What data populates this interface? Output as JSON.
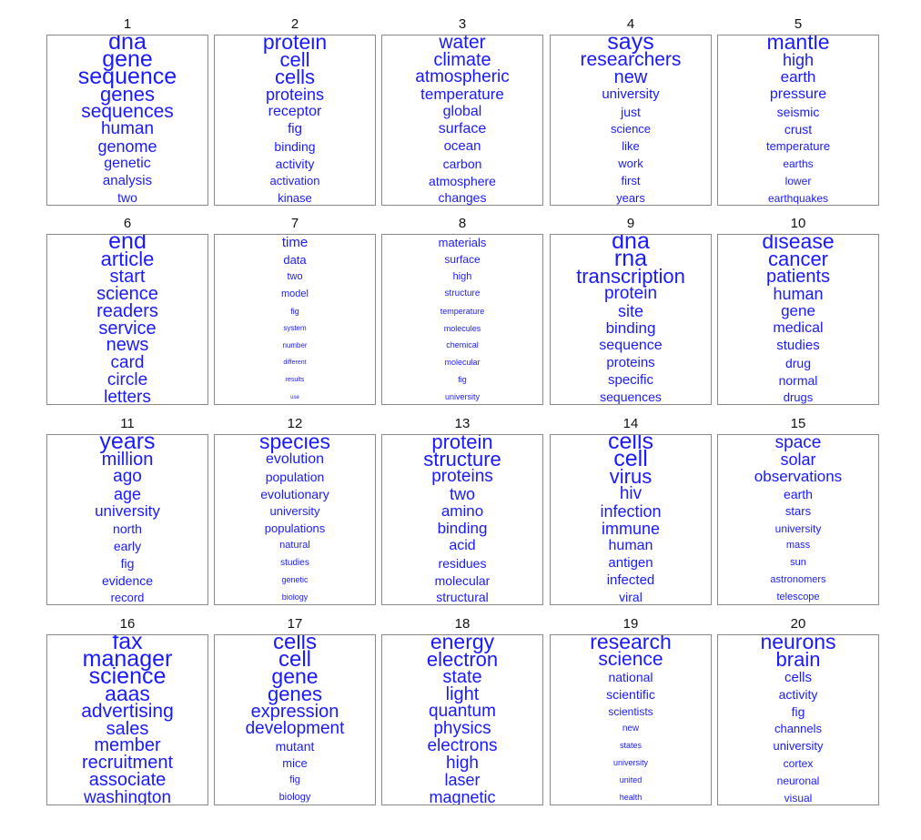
{
  "colors": {
    "word": "#1a1aff",
    "border": "#8a8a8a",
    "number": "#111111"
  },
  "topics": [
    {
      "number": "1",
      "words": [
        "dna",
        "gene",
        "sequence",
        "genes",
        "sequences",
        "human",
        "genome",
        "genetic",
        "analysis",
        "two"
      ],
      "weights": [
        1.0,
        1.0,
        1.0,
        0.86,
        0.82,
        0.76,
        0.7,
        0.64,
        0.6,
        0.55
      ]
    },
    {
      "number": "2",
      "words": [
        "protein",
        "cell",
        "cells",
        "proteins",
        "receptor",
        "fig",
        "binding",
        "activity",
        "activation",
        "kinase"
      ],
      "weights": [
        0.92,
        0.86,
        0.86,
        0.7,
        0.62,
        0.6,
        0.58,
        0.54,
        0.5,
        0.5
      ]
    },
    {
      "number": "3",
      "words": [
        "water",
        "climate",
        "atmospheric",
        "temperature",
        "global",
        "surface",
        "ocean",
        "carbon",
        "atmosphere",
        "changes"
      ],
      "weights": [
        0.82,
        0.78,
        0.76,
        0.68,
        0.64,
        0.62,
        0.6,
        0.58,
        0.56,
        0.55
      ]
    },
    {
      "number": "4",
      "words": [
        "says",
        "researchers",
        "new",
        "university",
        "just",
        "science",
        "like",
        "work",
        "first",
        "years"
      ],
      "weights": [
        1.0,
        0.84,
        0.78,
        0.6,
        0.56,
        0.52,
        0.5,
        0.5,
        0.5,
        0.5
      ]
    },
    {
      "number": "5",
      "words": [
        "mantle",
        "high",
        "earth",
        "pressure",
        "seismic",
        "crust",
        "temperature",
        "earths",
        "lower",
        "earthquakes"
      ],
      "weights": [
        0.9,
        0.72,
        0.68,
        0.64,
        0.58,
        0.54,
        0.5,
        0.48,
        0.48,
        0.48
      ]
    },
    {
      "number": "6",
      "words": [
        "end",
        "article",
        "start",
        "science",
        "readers",
        "service",
        "news",
        "card",
        "circle",
        "letters"
      ],
      "weights": [
        1.0,
        0.86,
        0.8,
        0.8,
        0.8,
        0.8,
        0.78,
        0.76,
        0.76,
        0.76
      ]
    },
    {
      "number": "7",
      "words": [
        "time",
        "data",
        "two",
        "model",
        "fig",
        "system",
        "number",
        "different",
        "results",
        "use"
      ],
      "weights": [
        0.6,
        0.5,
        0.44,
        0.42,
        0.36,
        0.32,
        0.3,
        0.28,
        0.26,
        0.24
      ]
    },
    {
      "number": "8",
      "words": [
        "materials",
        "surface",
        "high",
        "structure",
        "temperature",
        "molecules",
        "chemical",
        "molecular",
        "fig",
        "university"
      ],
      "weights": [
        0.5,
        0.46,
        0.42,
        0.4,
        0.36,
        0.36,
        0.36,
        0.36,
        0.36,
        0.34
      ]
    },
    {
      "number": "9",
      "words": [
        "dna",
        "rna",
        "transcription",
        "protein",
        "site",
        "binding",
        "sequence",
        "proteins",
        "specific",
        "sequences"
      ],
      "weights": [
        1.0,
        1.0,
        0.86,
        0.74,
        0.7,
        0.68,
        0.62,
        0.6,
        0.6,
        0.56
      ]
    },
    {
      "number": "10",
      "words": [
        "disease",
        "cancer",
        "patients",
        "human",
        "gene",
        "medical",
        "studies",
        "drug",
        "normal",
        "drugs"
      ],
      "weights": [
        0.92,
        0.86,
        0.78,
        0.72,
        0.66,
        0.64,
        0.6,
        0.56,
        0.56,
        0.52
      ]
    },
    {
      "number": "11",
      "words": [
        "years",
        "million",
        "ago",
        "age",
        "university",
        "north",
        "early",
        "fig",
        "evidence",
        "record"
      ],
      "weights": [
        1.0,
        0.78,
        0.76,
        0.7,
        0.66,
        0.58,
        0.58,
        0.58,
        0.54,
        0.5
      ]
    },
    {
      "number": "12",
      "words": [
        "species",
        "evolution",
        "population",
        "evolutionary",
        "university",
        "populations",
        "natural",
        "studies",
        "genetic",
        "biology"
      ],
      "weights": [
        0.92,
        0.62,
        0.56,
        0.54,
        0.52,
        0.5,
        0.42,
        0.38,
        0.36,
        0.36
      ]
    },
    {
      "number": "13",
      "words": [
        "protein",
        "structure",
        "proteins",
        "two",
        "amino",
        "binding",
        "acid",
        "residues",
        "molecular",
        "structural"
      ],
      "weights": [
        0.86,
        0.86,
        0.74,
        0.7,
        0.68,
        0.66,
        0.62,
        0.58,
        0.56,
        0.54
      ]
    },
    {
      "number": "14",
      "words": [
        "cells",
        "cell",
        "virus",
        "hiv",
        "infection",
        "immune",
        "human",
        "antigen",
        "infected",
        "viral"
      ],
      "weights": [
        1.0,
        1.0,
        0.86,
        0.76,
        0.72,
        0.7,
        0.62,
        0.6,
        0.6,
        0.56
      ]
    },
    {
      "number": "15",
      "words": [
        "space",
        "solar",
        "observations",
        "earth",
        "stars",
        "university",
        "mass",
        "sun",
        "astronomers",
        "telescope"
      ],
      "weights": [
        0.76,
        0.72,
        0.66,
        0.58,
        0.52,
        0.46,
        0.44,
        0.42,
        0.42,
        0.42
      ]
    },
    {
      "number": "16",
      "words": [
        "fax",
        "manager",
        "science",
        "aaas",
        "advertising",
        "sales",
        "member",
        "recruitment",
        "associate",
        "washington"
      ],
      "weights": [
        1.0,
        1.0,
        1.0,
        0.9,
        0.84,
        0.8,
        0.8,
        0.8,
        0.8,
        0.76
      ]
    },
    {
      "number": "17",
      "words": [
        "cells",
        "cell",
        "gene",
        "genes",
        "expression",
        "development",
        "mutant",
        "mice",
        "fig",
        "biology"
      ],
      "weights": [
        0.96,
        0.96,
        0.92,
        0.86,
        0.8,
        0.76,
        0.54,
        0.5,
        0.44,
        0.44
      ]
    },
    {
      "number": "18",
      "words": [
        "energy",
        "electron",
        "state",
        "light",
        "quantum",
        "physics",
        "electrons",
        "high",
        "laser",
        "magnetic"
      ],
      "weights": [
        0.92,
        0.86,
        0.8,
        0.78,
        0.76,
        0.76,
        0.74,
        0.74,
        0.72,
        0.72
      ]
    },
    {
      "number": "19",
      "words": [
        "research",
        "science",
        "national",
        "scientific",
        "scientists",
        "new",
        "states",
        "university",
        "united",
        "health"
      ],
      "weights": [
        0.9,
        0.84,
        0.58,
        0.56,
        0.46,
        0.4,
        0.36,
        0.34,
        0.34,
        0.34
      ]
    },
    {
      "number": "20",
      "words": [
        "neurons",
        "brain",
        "cells",
        "activity",
        "fig",
        "channels",
        "university",
        "cortex",
        "neuronal",
        "visual"
      ],
      "weights": [
        0.92,
        0.86,
        0.6,
        0.58,
        0.54,
        0.52,
        0.5,
        0.48,
        0.46,
        0.46
      ]
    }
  ]
}
